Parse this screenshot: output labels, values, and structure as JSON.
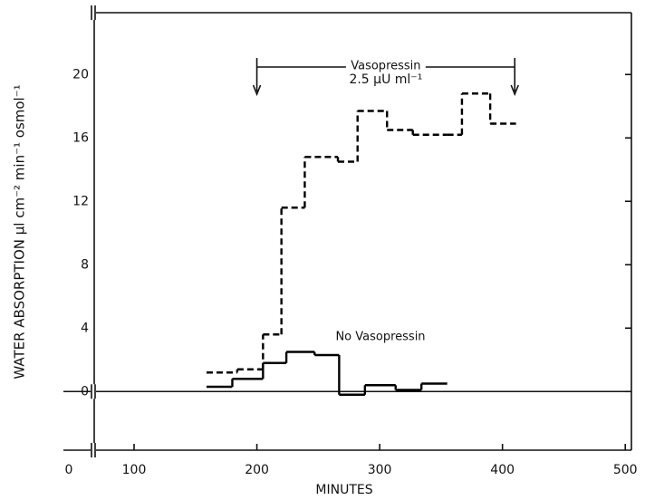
{
  "chart_data": {
    "type": "step",
    "x_label": "MINUTES",
    "y_label": "WATER ABSORPTION μl cm⁻² min⁻¹ osmol⁻¹",
    "xlim": [
      0,
      505
    ],
    "xticks": [
      0,
      100,
      200,
      300,
      400,
      500
    ],
    "ylim": [
      -3.7,
      23.9
    ],
    "yticks": [
      0,
      4,
      8,
      12,
      16,
      20
    ],
    "axis_break": true,
    "zero_line": true,
    "series": [
      {
        "name": "Vasopressin",
        "color": "#000000",
        "dashed": true,
        "bins": [
          159,
          184,
          205,
          220,
          239,
          266,
          282,
          306,
          327,
          355,
          367,
          390,
          411
        ],
        "values": [
          1.2,
          1.4,
          3.6,
          11.6,
          14.8,
          14.5,
          17.7,
          16.5,
          16.2,
          16.2,
          18.8,
          16.9
        ]
      },
      {
        "name": "No Vasopressin",
        "color": "#000000",
        "dashed": false,
        "bins": [
          159,
          180,
          205,
          224,
          247,
          267,
          288,
          313,
          334,
          355
        ],
        "values": [
          0.3,
          0.8,
          1.8,
          2.5,
          2.3,
          -0.2,
          0.4,
          0.1,
          0.5
        ]
      }
    ],
    "annotation": {
      "label": "2.5 μU ml⁻¹",
      "x": [
        200,
        410
      ]
    }
  }
}
